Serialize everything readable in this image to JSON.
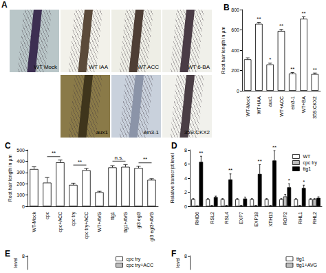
{
  "image_panel": {
    "title": "A",
    "images": [
      "WT Mock",
      "WT IAA",
      "WT ACC",
      "WT 6-BA",
      "aux1",
      "ein3-1",
      "35S:CKX2"
    ]
  },
  "chart_data": [
    {
      "title": "B",
      "type": "bar",
      "categories": [
        "WT-Mock",
        "WT+IAA",
        "aux1",
        "WT+ACC",
        "ein3-1",
        "WT+BA",
        "35S:CKX2"
      ],
      "values": [
        310,
        660,
        260,
        590,
        170,
        710,
        165
      ],
      "errors": [
        15,
        15,
        12,
        15,
        10,
        20,
        10
      ],
      "color": "#ffffff",
      "ylabel": "Root hair length in µm",
      "ylim": [
        0,
        800
      ],
      "yticks": [
        0,
        200,
        400,
        600,
        800
      ],
      "grid": false,
      "annotations": [
        {
          "category": "WT+IAA",
          "text": "**"
        },
        {
          "category": "aux1",
          "text": "*"
        },
        {
          "category": "WT+ACC",
          "text": "**"
        },
        {
          "category": "ein3-1",
          "text": "**"
        },
        {
          "category": "WT+BA",
          "text": "**"
        },
        {
          "category": "35S:CKX2",
          "text": "**"
        }
      ]
    },
    {
      "title": "C",
      "type": "bar",
      "categories": [
        "WT-Mock",
        "cpc",
        "cpc+ACC",
        "cpc try",
        "cpc try+ACC",
        "WT+AVG",
        "ttg1",
        "ttg1+AVG",
        "gl3 egl3",
        "gl3 egl3+AVG"
      ],
      "values": [
        330,
        210,
        390,
        190,
        320,
        125,
        345,
        350,
        340,
        235
      ],
      "errors": [
        20,
        45,
        20,
        15,
        15,
        8,
        15,
        20,
        15,
        10
      ],
      "color": "#ffffff",
      "ylabel": "Root hair length in µm",
      "ylim": [
        0,
        500
      ],
      "yticks": [
        0,
        100,
        200,
        300,
        400,
        500
      ],
      "grid": false,
      "annotations": [
        {
          "from": "cpc",
          "to": "cpc+ACC",
          "text": "**"
        },
        {
          "from": "cpc try",
          "to": "cpc try+ACC",
          "text": "**"
        },
        {
          "from": "ttg1",
          "to": "ttg1+AVG",
          "text": "n.s."
        },
        {
          "from": "gl3 egl3",
          "to": "gl3 egl3+AVG",
          "text": "**"
        }
      ]
    },
    {
      "title": "D",
      "type": "bar",
      "categories": [
        "RHD6",
        "RSL2",
        "RSL4",
        "EXP7",
        "EXP18",
        "XTH13",
        "ROP2",
        "RHL1",
        "RHL2"
      ],
      "series": [
        {
          "name": "WT",
          "color": "#ffffff",
          "values": [
            1,
            1,
            1,
            1,
            1,
            1,
            1,
            1,
            1
          ],
          "errors": [
            0.1,
            0.1,
            0.1,
            0.1,
            0.1,
            0.1,
            0.1,
            0.1,
            0.1
          ]
        },
        {
          "name": "cpc try",
          "color": "#bdbdbd",
          "values": [
            0.05,
            0.1,
            0.1,
            0.1,
            0.1,
            0.1,
            1.4,
            0.1,
            1.0
          ],
          "errors": [
            0.02,
            0.02,
            0.02,
            0.02,
            0.02,
            0.02,
            0.3,
            0.02,
            0.1
          ]
        },
        {
          "name": "ttg1",
          "color": "#000000",
          "values": [
            6.3,
            1.3,
            3.8,
            1.1,
            4.6,
            6.5,
            2.7,
            2.6,
            1.2
          ],
          "errors": [
            0.8,
            0.15,
            0.8,
            0.2,
            1.3,
            1.4,
            0.5,
            0.4,
            0.15
          ]
        }
      ],
      "ylabel": "Relative transcript level",
      "ylim": [
        0,
        8
      ],
      "yticks": [
        0,
        2,
        4,
        6,
        8
      ],
      "grid": false,
      "legend": "upper right",
      "annotations": [
        {
          "category": "RHD6",
          "series": "ttg1",
          "text": "**"
        },
        {
          "category": "RSL4",
          "series": "ttg1",
          "text": "**"
        },
        {
          "category": "EXP18",
          "series": "ttg1",
          "text": "**"
        },
        {
          "category": "XTH13",
          "series": "ttg1",
          "text": "**"
        },
        {
          "category": "ROP2",
          "series": "ttg1",
          "text": "*"
        },
        {
          "category": "RHL1",
          "series": "ttg1",
          "text": "*"
        }
      ]
    },
    {
      "title": "E",
      "type": "bar",
      "series": [
        {
          "name": "cpc try",
          "color": "#ffffff",
          "values": []
        },
        {
          "name": "cpc try+ACC",
          "color": "#bdbdbd",
          "values": []
        }
      ],
      "ylabel": "level",
      "ylim": [
        0,
        8
      ],
      "yticks": [
        8
      ],
      "grid": false,
      "legend": "upper right",
      "tick_labels": "y"
    },
    {
      "title": "F",
      "type": "bar",
      "series": [
        {
          "name": "ttg1",
          "color": "#ffffff",
          "values": []
        },
        {
          "name": "ttg1+AVG",
          "color": "#bdbdbd",
          "values": []
        }
      ],
      "ylabel": "level",
      "ylim": [
        0,
        8
      ],
      "yticks": [
        8
      ],
      "grid": false,
      "legend": "upper right",
      "tick_labels": "y"
    }
  ]
}
